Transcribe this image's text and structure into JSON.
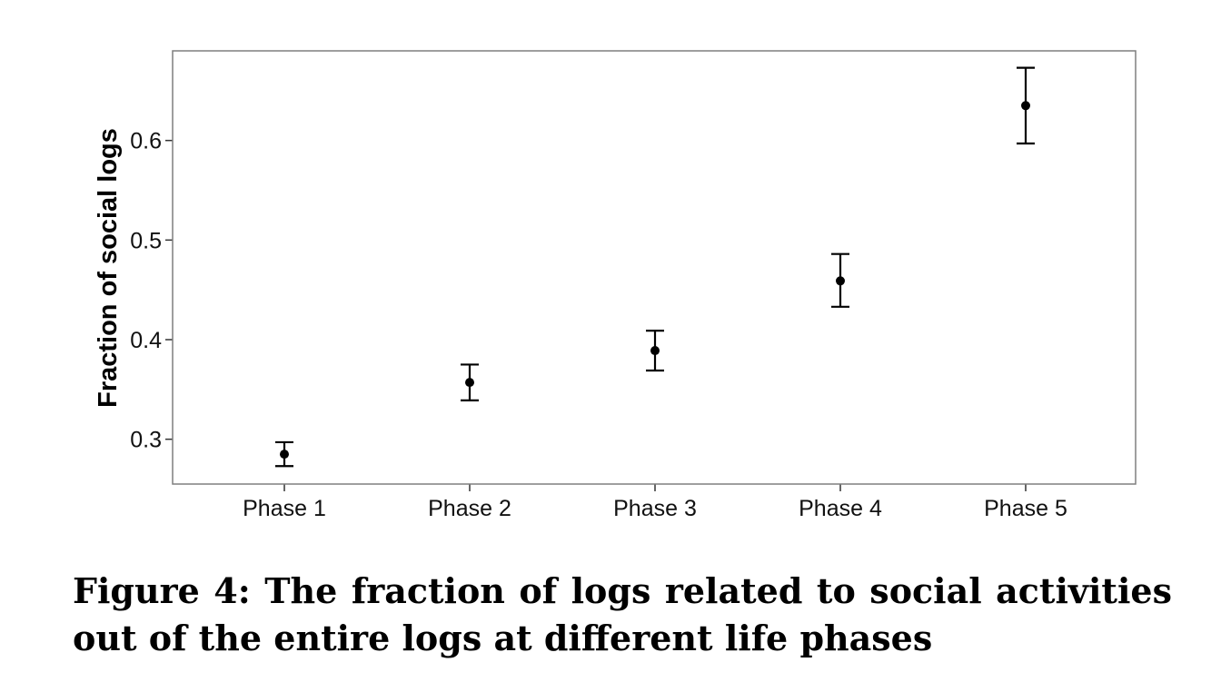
{
  "chart_data": {
    "type": "scatter",
    "subtype": "point-with-error-bars",
    "categories": [
      "Phase 1",
      "Phase 2",
      "Phase 3",
      "Phase 4",
      "Phase 5"
    ],
    "series": [
      {
        "values": [
          0.285,
          0.357,
          0.389,
          0.459,
          0.635
        ],
        "lower": [
          0.273,
          0.339,
          0.369,
          0.433,
          0.597
        ],
        "upper": [
          0.297,
          0.375,
          0.409,
          0.486,
          0.673
        ]
      }
    ],
    "ylabel": "Fraction of social logs",
    "xlabel": "",
    "ylim": [
      0.255,
      0.69
    ],
    "yticks": [
      "0.3",
      "0.4",
      "0.5",
      "0.6"
    ],
    "grid": false,
    "legend": "none"
  },
  "caption": "Figure 4: The fraction of logs related to social activities out of the entire logs at different life phases",
  "colors": {
    "marks": "#000000",
    "panel_border": "#7f7f7f",
    "background": "#ffffff"
  }
}
